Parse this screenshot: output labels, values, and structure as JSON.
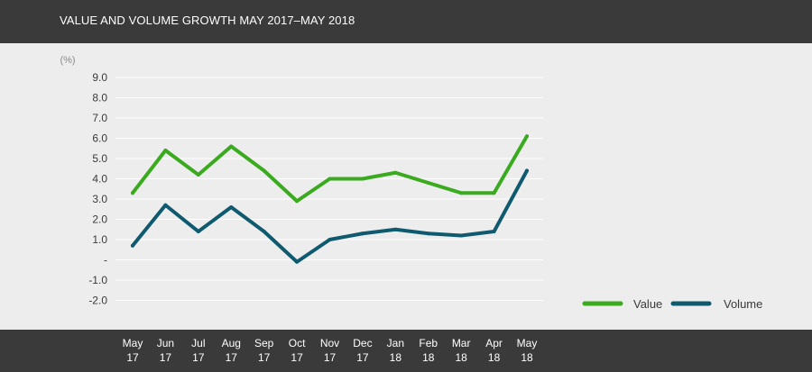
{
  "header": {
    "title": "VALUE AND VOLUME GROWTH MAY 2017–MAY 2018"
  },
  "colors": {
    "value": "#3aaa1e",
    "volume": "#0f5a6e",
    "header_bg": "#3a3a3a",
    "plot_bg": "#ededed"
  },
  "chart_data": {
    "type": "line",
    "title": "VALUE AND VOLUME GROWTH MAY 2017–MAY 2018",
    "ylabel": "(%)",
    "xlabel": "",
    "ylim": [
      -2.0,
      9.0
    ],
    "grid": true,
    "legend_position": "bottom-right",
    "yticks": [
      "9.0",
      "8.0",
      "7.0",
      "6.0",
      "5.0",
      "4.0",
      "3.0",
      "2.0",
      "1.0",
      "-",
      "-1.0",
      "-2.0"
    ],
    "categories": [
      [
        "May",
        "17"
      ],
      [
        "Jun",
        "17"
      ],
      [
        "Jul",
        "17"
      ],
      [
        "Aug",
        "17"
      ],
      [
        "Sep",
        "17"
      ],
      [
        "Oct",
        "17"
      ],
      [
        "Nov",
        "17"
      ],
      [
        "Dec",
        "17"
      ],
      [
        "Jan",
        "18"
      ],
      [
        "Feb",
        "18"
      ],
      [
        "Mar",
        "18"
      ],
      [
        "Apr",
        "18"
      ],
      [
        "May",
        "18"
      ]
    ],
    "series": [
      {
        "name": "Value",
        "values": [
          3.3,
          5.4,
          4.2,
          5.6,
          4.4,
          2.9,
          4.0,
          4.0,
          4.3,
          3.8,
          3.3,
          3.3,
          6.1
        ]
      },
      {
        "name": "Volume",
        "values": [
          0.7,
          2.7,
          1.4,
          2.6,
          1.4,
          -0.1,
          1.0,
          1.3,
          1.5,
          1.3,
          1.2,
          1.4,
          4.4
        ]
      }
    ]
  }
}
